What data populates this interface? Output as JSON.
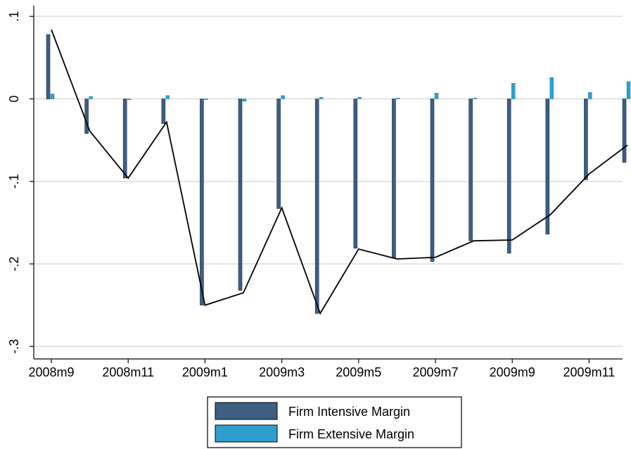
{
  "chart_data": {
    "type": "bar",
    "categories": [
      "2008m9",
      "2008m10",
      "2008m11",
      "2008m12",
      "2009m1",
      "2009m2",
      "2009m3",
      "2009m4",
      "2009m5",
      "2009m6",
      "2009m7",
      "2009m8",
      "2009m9",
      "2009m10",
      "2009m11",
      "2009m12"
    ],
    "x_tick_labels": [
      "2008m9",
      "2008m11",
      "2009m1",
      "2009m3",
      "2009m5",
      "2009m7",
      "2009m9",
      "2009m11"
    ],
    "y_ticks": [
      0.1,
      0,
      -0.1,
      -0.2,
      -0.3
    ],
    "y_tick_labels": [
      ".1",
      "0",
      "-.1",
      "-.2",
      "-.3"
    ],
    "ylim": [
      -0.32,
      0.113
    ],
    "grid": true,
    "legend_position": "bottom",
    "series": [
      {
        "name": "Firm Intensive Margin",
        "type": "bar",
        "color": "#3d5f82",
        "values": [
          0.078,
          -0.042,
          -0.096,
          -0.03,
          -0.25,
          -0.232,
          -0.133,
          -0.26,
          -0.181,
          -0.193,
          -0.197,
          -0.172,
          -0.187,
          -0.164,
          -0.098,
          -0.077
        ]
      },
      {
        "name": "Firm Extensive Margin",
        "type": "bar",
        "color": "#2e9fcc",
        "values": [
          0.006,
          0.003,
          -0.001,
          0.004,
          -0.001,
          -0.003,
          0.004,
          0.002,
          0.002,
          0.001,
          0.007,
          0.001,
          0.019,
          0.026,
          0.008,
          0.021
        ]
      },
      {
        "type": "line",
        "color": "#000000",
        "values": [
          0.084,
          -0.039,
          -0.096,
          -0.028,
          -0.25,
          -0.235,
          -0.132,
          -0.26,
          -0.182,
          -0.194,
          -0.192,
          -0.172,
          -0.171,
          -0.14,
          -0.091,
          -0.056
        ]
      }
    ]
  }
}
